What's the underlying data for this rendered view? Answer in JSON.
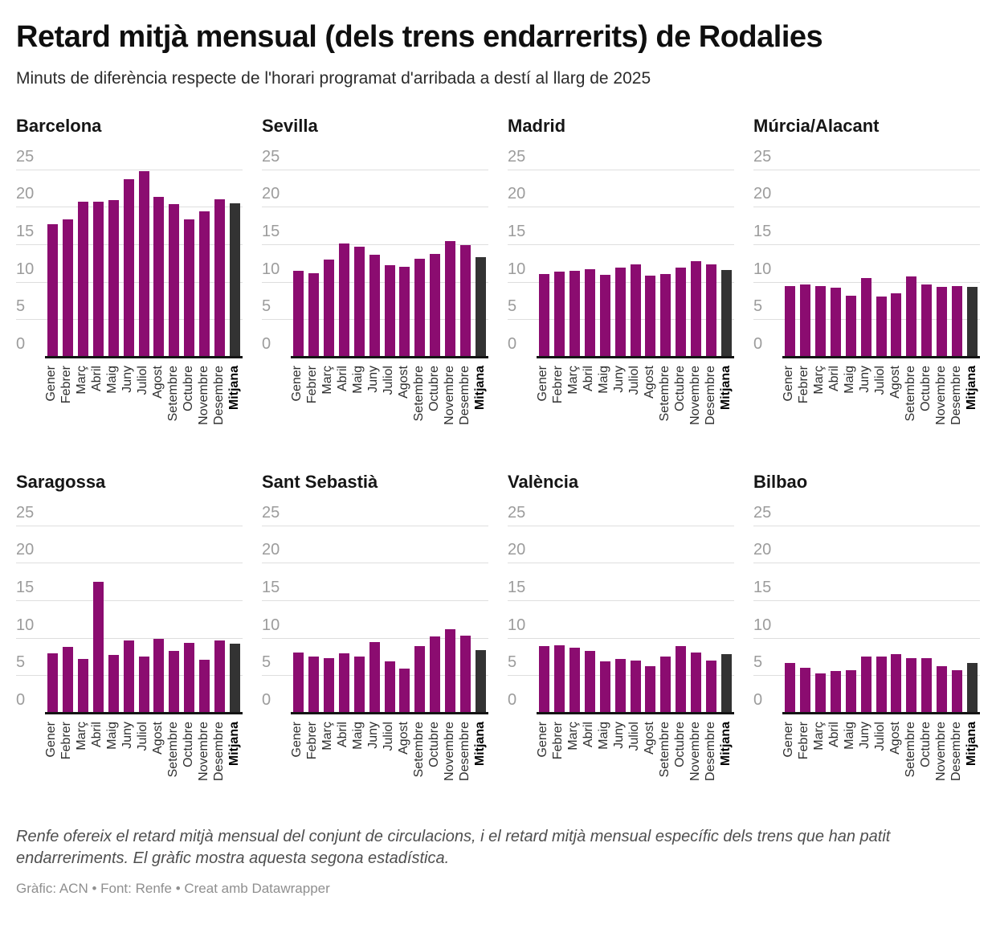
{
  "header": {
    "title": "Retard mitjà mensual (dels trens endarrerits) de Rodalies",
    "subtitle": "Minuts de diferència respecte de l'horari programat d'arribada a destí al llarg de 2025"
  },
  "colors": {
    "bar": "#8B0C70",
    "mean_bar": "#333333",
    "grid": "#DEDEDE",
    "axis_line": "#141414",
    "tick_label": "#9C9C9C"
  },
  "chart_data": {
    "type": "bar",
    "layout": "small-multiples-4x2",
    "grid": true,
    "ylim": [
      0,
      25
    ],
    "yticks": [
      0,
      5,
      10,
      15,
      20,
      25
    ],
    "categories": [
      "Gener",
      "Febrer",
      "Març",
      "Abril",
      "Maig",
      "Juny",
      "Juliol",
      "Agost",
      "Setembre",
      "Octubre",
      "Novembre",
      "Desembre",
      "Mitjana"
    ],
    "mean_category": "Mitjana",
    "series": [
      {
        "name": "Barcelona",
        "values": [
          17.8,
          18.4,
          20.8,
          20.8,
          21.0,
          23.8,
          24.9,
          21.4,
          20.5,
          18.4,
          19.5,
          21.1,
          20.6
        ]
      },
      {
        "name": "Sevilla",
        "values": [
          11.6,
          11.2,
          13.1,
          15.2,
          14.8,
          13.7,
          12.3,
          12.1,
          13.2,
          13.8,
          15.5,
          15.0,
          13.4
        ]
      },
      {
        "name": "Madrid",
        "values": [
          11.1,
          11.5,
          11.6,
          11.8,
          11.0,
          12.0,
          12.4,
          10.9,
          11.1,
          12.0,
          12.9,
          12.4,
          11.7
        ]
      },
      {
        "name": "Múrcia/Alacant",
        "values": [
          9.5,
          9.7,
          9.5,
          9.3,
          8.2,
          10.6,
          8.1,
          8.6,
          10.8,
          9.8,
          9.4,
          9.5,
          9.4
        ]
      },
      {
        "name": "Saragossa",
        "values": [
          8.0,
          8.9,
          7.3,
          17.6,
          7.8,
          9.8,
          7.6,
          10.0,
          8.3,
          9.4,
          7.2,
          9.7,
          9.3
        ]
      },
      {
        "name": "Sant Sebastià",
        "values": [
          8.1,
          7.6,
          7.4,
          8.0,
          7.6,
          9.5,
          7.0,
          6.0,
          9.0,
          10.3,
          11.2,
          10.4,
          8.5
        ]
      },
      {
        "name": "València",
        "values": [
          9.0,
          9.1,
          8.8,
          8.4,
          7.0,
          7.3,
          7.1,
          6.3,
          7.6,
          9.0,
          8.1,
          7.1,
          7.9
        ]
      },
      {
        "name": "Bilbao",
        "values": [
          6.7,
          6.1,
          5.4,
          5.7,
          5.8,
          7.6,
          7.6,
          7.9,
          7.4,
          7.4,
          6.3,
          5.8,
          6.7
        ]
      }
    ]
  },
  "footer": {
    "note": "Renfe ofereix el retard mitjà mensual del conjunt de circulacions, i el retard mitjà mensual específic dels trens que han patit endarreriments. El gràfic mostra aquesta segona estadística.",
    "byline": "Gràfic: ACN • Font: Renfe • Creat amb Datawrapper"
  }
}
